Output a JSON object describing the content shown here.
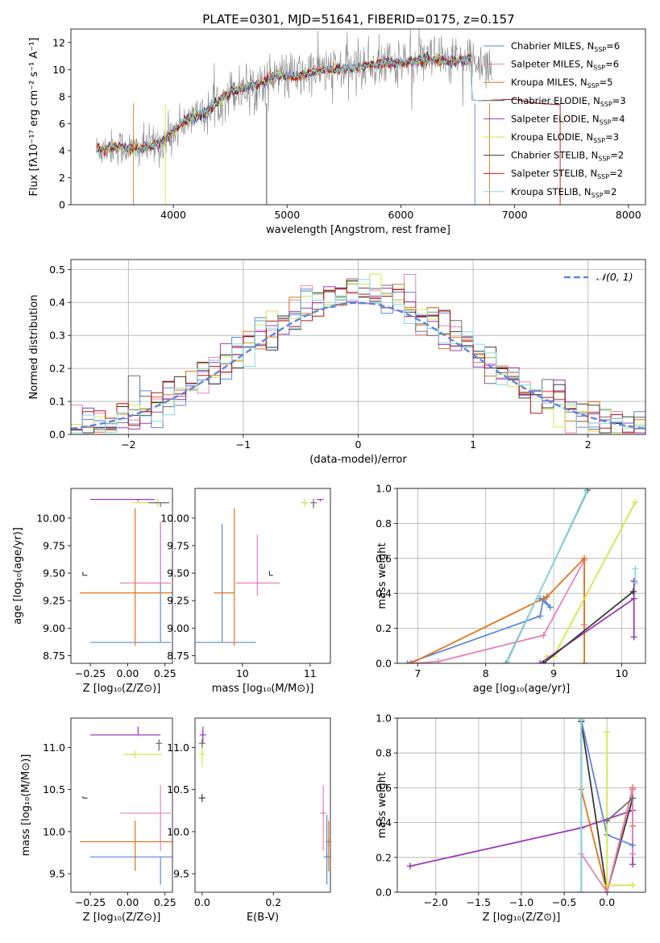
{
  "title": "PLATE=0301, MJD=51641, FIBERID=0175, z=0.157",
  "colors": {
    "chabrier_miles": "#5f87d8",
    "salpeter_miles": "#e783b9",
    "kroupa_miles": "#e0751f",
    "chabrier_elodie": "#707070",
    "salpeter_elodie": "#9c3cb6",
    "kroupa_elodie": "#d0e84c",
    "chabrier_stelib": "#3a3a3a",
    "salpeter_stelib": "#b01818",
    "kroupa_stelib": "#86d9e3",
    "data_gray": "#888888",
    "gaussian": "#5f87d8",
    "grid": "#b0b0b0"
  },
  "chart_data": [
    {
      "panel": "spectrum",
      "type": "line",
      "xlabel": "wavelength [Angstrom, rest frame]",
      "ylabel": "Flux [fλ10⁻¹⁷ erg cm⁻² s⁻¹ A⁻¹]",
      "xlim": [
        3100,
        8150
      ],
      "ylim": [
        0,
        13
      ],
      "xticks": [
        4000,
        5000,
        6000,
        7000,
        8000
      ],
      "yticks": [
        0,
        2,
        4,
        6,
        8,
        10,
        12
      ],
      "grid": false,
      "legend_position": "right",
      "legend": [
        "Chabrier MILES, N_SSP=6",
        "Salpeter MILES, N_SSP=6",
        "Kroupa MILES, N_SSP=5",
        "Chabrier ELODIE, N_SSP=3",
        "Salpeter ELODIE, N_SSP=4",
        "Kroupa ELODIE, N_SSP=3",
        "Chabrier STELIB, N_SSP=2",
        "Salpeter STELIB, N_SSP=2",
        "Kroupa STELIB, N_SSP=2"
      ],
      "model_continuum": {
        "x": [
          3300,
          3500,
          3700,
          3900,
          4100,
          4300,
          4500,
          4700,
          4900,
          5100,
          5300,
          5500,
          5700,
          5900,
          6100,
          6300,
          6500,
          6600,
          6800
        ],
        "y": [
          4.0,
          4.3,
          4.1,
          4.6,
          6.2,
          6.9,
          8.4,
          8.8,
          9.5,
          9.5,
          10.0,
          10.0,
          10.3,
          10.5,
          10.6,
          10.7,
          10.6,
          10.8,
          10.4
        ]
      },
      "orange_tail": {
        "x": [
          6550,
          6700,
          7000,
          7200,
          7400
        ],
        "y": [
          7.8,
          7.7,
          7.8,
          7.5,
          7.4
        ]
      }
    },
    {
      "panel": "residuals",
      "type": "step",
      "xlabel": "(data-model)/error",
      "ylabel": "Normed distribution",
      "xlim": [
        -2.5,
        2.5
      ],
      "ylim": [
        0,
        0.53
      ],
      "xticks": [
        -2,
        -1,
        0,
        1,
        2
      ],
      "yticks": [
        0.0,
        0.1,
        0.2,
        0.3,
        0.4,
        0.5
      ],
      "grid": true,
      "legend_position": "upper right",
      "legend": [
        "𝒩(0, 1)"
      ],
      "reference": "standard normal N(0,1)"
    },
    {
      "panel": "Z-age",
      "type": "errorbar",
      "xlabel": "Z [log₁₀(Z/Z⊙)]",
      "ylabel": "age  [log₁₀(age/yr)]",
      "xlim": [
        -0.38,
        0.3
      ],
      "ylim": [
        8.68,
        10.27
      ],
      "xticks": [
        -0.25,
        0.0,
        0.25
      ],
      "yticks": [
        8.75,
        9.0,
        9.25,
        9.5,
        9.75,
        10.0
      ],
      "points": [
        {
          "model": "chabrier_miles",
          "x": 0.22,
          "xerr": [
            0.47,
            0.07
          ],
          "y": 8.87,
          "yerr": [
            0.0,
            1.08
          ]
        },
        {
          "model": "kroupa_miles",
          "x": 0.05,
          "xerr": [
            0.37,
            0.25
          ],
          "y": 9.32,
          "yerr": [
            0.48,
            0.77
          ]
        },
        {
          "model": "salpeter_miles",
          "x": 0.22,
          "xerr": [
            0.27,
            0.07
          ],
          "y": 9.41,
          "yerr": [
            0.0,
            0.56
          ]
        },
        {
          "model": "chabrier_stelib",
          "x": -0.3,
          "xerr": [
            0.0,
            0.03
          ],
          "y": 9.48,
          "yerr": [
            0.0,
            0.03
          ]
        },
        {
          "model": "salpeter_elodie",
          "x": 0.07,
          "xerr": [
            0.32,
            0.11
          ],
          "y": 10.17,
          "yerr": [
            0.02,
            0.0
          ]
        },
        {
          "model": "kroupa_elodie",
          "x": 0.2,
          "xerr": [
            0.17,
            0.08
          ],
          "y": 10.14,
          "yerr": [
            0.0,
            0.0
          ]
        },
        {
          "model": "chabrier_elodie",
          "x": 0.22,
          "xerr": [
            0.08,
            0.06
          ],
          "y": 10.14,
          "yerr": [
            0.04,
            0.0
          ]
        }
      ]
    },
    {
      "panel": "mass-age",
      "type": "errorbar",
      "xlabel": "mass [log₁₀(M/M⊙)]",
      "ylabel": "",
      "xlim": [
        9.3,
        11.3
      ],
      "ylim": [
        8.68,
        10.27
      ],
      "xticks": [
        10,
        11
      ],
      "yticks": [
        8.75,
        9.0,
        9.25,
        9.5,
        9.75,
        10.0
      ],
      "points": [
        {
          "model": "chabrier_miles",
          "x": 9.7,
          "xerr": [
            0.4,
            0.5
          ],
          "y": 8.87,
          "yerr": [
            0.0,
            1.08
          ]
        },
        {
          "model": "kroupa_miles",
          "x": 9.88,
          "xerr": [
            0.3,
            0.0
          ],
          "y": 9.32,
          "yerr": [
            0.48,
            0.77
          ]
        },
        {
          "model": "salpeter_miles",
          "x": 10.22,
          "xerr": [
            0.32,
            0.33
          ],
          "y": 9.41,
          "yerr": [
            0.12,
            0.44
          ]
        },
        {
          "model": "chabrier_stelib",
          "x": 10.4,
          "xerr": [
            0.0,
            0.05
          ],
          "y": 9.48,
          "yerr": [
            0.0,
            0.04
          ]
        },
        {
          "model": "salpeter_elodie",
          "x": 11.15,
          "xerr": [
            0.05,
            0.05
          ],
          "y": 10.17,
          "yerr": [
            0.02,
            0.0
          ]
        },
        {
          "model": "kroupa_elodie",
          "x": 10.92,
          "xerr": [
            0.04,
            0.04
          ],
          "y": 10.14,
          "yerr": [
            0.0,
            0.0
          ]
        },
        {
          "model": "chabrier_elodie",
          "x": 11.05,
          "xerr": [
            0.0,
            0.0
          ],
          "y": 10.14,
          "yerr": [
            0.05,
            0.0
          ]
        }
      ]
    },
    {
      "panel": "age-massweight",
      "type": "line",
      "xlabel": "age  [log₁₀(age/yr)]",
      "ylabel": "mass weight",
      "xlim": [
        6.7,
        10.35
      ],
      "ylim": [
        0,
        1
      ],
      "xticks": [
        7,
        8,
        9,
        10
      ],
      "yticks": [
        0.0,
        0.2,
        0.4,
        0.6,
        0.8,
        1.0
      ],
      "grid": true,
      "series": [
        {
          "model": "chabrier_miles",
          "x": [
            6.85,
            8.8,
            8.85,
            8.95,
            8.8
          ],
          "y": [
            0.0,
            0.27,
            0.37,
            0.32,
            0.37
          ]
        },
        {
          "model": "salpeter_miles",
          "x": [
            6.95,
            7.3,
            8.85,
            9.45,
            9.45
          ],
          "y": [
            0.0,
            0.01,
            0.16,
            0.59,
            0.22
          ]
        },
        {
          "model": "kroupa_miles",
          "x": [
            6.9,
            8.9,
            9.45,
            9.45
          ],
          "y": [
            0.0,
            0.38,
            0.6,
            0.0
          ]
        },
        {
          "model": "chabrier_elodie",
          "x": [
            8.3,
            9.5
          ],
          "y": [
            0.0,
            0.99
          ]
        },
        {
          "model": "kroupa_stelib",
          "x": [
            8.32,
            9.48
          ],
          "y": [
            0.01,
            0.98
          ]
        },
        {
          "model": "kroupa_elodie",
          "x": [
            8.9,
            9.0,
            10.2
          ],
          "y": [
            0.04,
            0.04,
            0.92
          ]
        },
        {
          "model": "salpeter_elodie",
          "x": [
            8.8,
            10.18,
            10.18,
            10.18
          ],
          "y": [
            0.0,
            0.37,
            0.47,
            0.15
          ]
        },
        {
          "model": "chabrier_stelib",
          "x": [
            8.85,
            10.17
          ],
          "y": [
            0.0,
            0.41
          ]
        },
        {
          "model": "kroupa_stelib",
          "x": [
            10.2,
            10.2
          ],
          "y": [
            0.54,
            0.46
          ]
        }
      ]
    },
    {
      "panel": "Z-mass",
      "type": "errorbar",
      "xlabel": "Z [log₁₀(Z/Z⊙)]",
      "ylabel": "mass [log₁₀(M/M⊙)]",
      "xlim": [
        -0.38,
        0.3
      ],
      "ylim": [
        9.28,
        11.35
      ],
      "xticks": [
        -0.25,
        0.0,
        0.25
      ],
      "yticks": [
        9.5,
        10.0,
        10.5,
        11.0
      ],
      "points": [
        {
          "model": "chabrier_miles",
          "x": 0.22,
          "xerr": [
            0.47,
            0.08
          ],
          "y": 9.7,
          "yerr": [
            0.33,
            0.0
          ]
        },
        {
          "model": "kroupa_miles",
          "x": 0.05,
          "xerr": [
            0.37,
            0.25
          ],
          "y": 9.88,
          "yerr": [
            0.35,
            0.25
          ]
        },
        {
          "model": "salpeter_miles",
          "x": 0.22,
          "xerr": [
            0.27,
            0.07
          ],
          "y": 10.22,
          "yerr": [
            0.45,
            0.33
          ]
        },
        {
          "model": "chabrier_stelib",
          "x": -0.3,
          "xerr": [
            0.0,
            0.03
          ],
          "y": 10.4,
          "yerr": [
            0.0,
            0.02
          ]
        },
        {
          "model": "salpeter_elodie",
          "x": 0.07,
          "xerr": [
            0.32,
            0.15
          ],
          "y": 11.15,
          "yerr": [
            0.0,
            0.1
          ]
        },
        {
          "model": "kroupa_elodie",
          "x": 0.05,
          "xerr": [
            0.08,
            0.18
          ],
          "y": 10.92,
          "yerr": [
            0.0,
            0.0
          ]
        },
        {
          "model": "chabrier_elodie",
          "x": 0.21,
          "xerr": [
            0.0,
            0.0
          ],
          "y": 11.05,
          "yerr": [
            0.09,
            0.04
          ]
        }
      ]
    },
    {
      "panel": "EBV-mass",
      "type": "errorbar",
      "xlabel": "E(B-V)",
      "ylabel": "",
      "xlim": [
        -0.02,
        0.36
      ],
      "ylim": [
        9.28,
        11.35
      ],
      "xticks": [
        0.0,
        0.2
      ],
      "yticks": [
        9.5,
        10.0,
        10.5,
        11.0
      ],
      "points": [
        {
          "model": "chabrier_miles",
          "x": 0.35,
          "y": 9.7,
          "yerr": [
            0.33,
            0.5
          ]
        },
        {
          "model": "kroupa_miles",
          "x": 0.355,
          "y": 9.88,
          "yerr": [
            0.35,
            0.25
          ]
        },
        {
          "model": "salpeter_miles",
          "x": 0.34,
          "y": 10.22,
          "yerr": [
            0.45,
            0.33
          ]
        },
        {
          "model": "chabrier_stelib",
          "x": 0.0,
          "y": 10.4,
          "yerr": [
            0.0,
            0.02
          ]
        },
        {
          "model": "salpeter_elodie",
          "x": 0.002,
          "y": 11.15,
          "yerr": [
            0.1,
            0.1
          ]
        },
        {
          "model": "kroupa_elodie",
          "x": 0.0,
          "y": 10.92,
          "yerr": [
            0.15,
            0.1
          ]
        },
        {
          "model": "chabrier_elodie",
          "x": 0.0,
          "y": 11.05,
          "yerr": [
            0.05,
            0.05
          ]
        }
      ]
    },
    {
      "panel": "Z-massweight",
      "type": "line",
      "xlabel": "Z [log₁₀(Z/Z⊙)]",
      "ylabel": "mass weight",
      "xlim": [
        -2.45,
        0.45
      ],
      "ylim": [
        0,
        1
      ],
      "xticks": [
        -2.0,
        -1.5,
        -1.0,
        -0.5,
        0.0
      ],
      "yticks": [
        0.0,
        0.2,
        0.4,
        0.6,
        0.8,
        1.0
      ],
      "grid": true,
      "series": [
        {
          "model": "salpeter_elodie",
          "x": [
            -2.3,
            -0.3,
            0.3,
            0.3,
            0.3
          ],
          "y": [
            0.15,
            0.37,
            0.47,
            0.59,
            0.16
          ]
        },
        {
          "model": "chabrier_stelib",
          "x": [
            -0.3,
            -0.3,
            0.0,
            0.3
          ],
          "y": [
            0.0,
            0.98,
            0.0,
            0.54
          ]
        },
        {
          "model": "kroupa_miles",
          "x": [
            -0.3,
            -0.3,
            0.0,
            0.3,
            0.3
          ],
          "y": [
            0.99,
            0.59,
            0.0,
            0.6,
            0.38
          ]
        },
        {
          "model": "salpeter_miles",
          "x": [
            -0.3,
            0.0,
            0.3,
            0.3
          ],
          "y": [
            0.22,
            0.0,
            0.59,
            0.22
          ]
        },
        {
          "model": "chabrier_miles",
          "x": [
            -0.3,
            0.0,
            0.3
          ],
          "y": [
            0.99,
            0.33,
            0.27
          ]
        },
        {
          "model": "kroupa_elodie",
          "x": [
            0.0,
            0.0,
            0.3
          ],
          "y": [
            0.92,
            0.04,
            0.04
          ]
        },
        {
          "model": "chabrier_elodie",
          "x": [
            0.0,
            0.3
          ],
          "y": [
            0.41,
            0.54
          ]
        },
        {
          "model": "kroupa_stelib",
          "x": [
            -0.3,
            -0.3
          ],
          "y": [
            0.99,
            0.0
          ]
        }
      ]
    }
  ]
}
